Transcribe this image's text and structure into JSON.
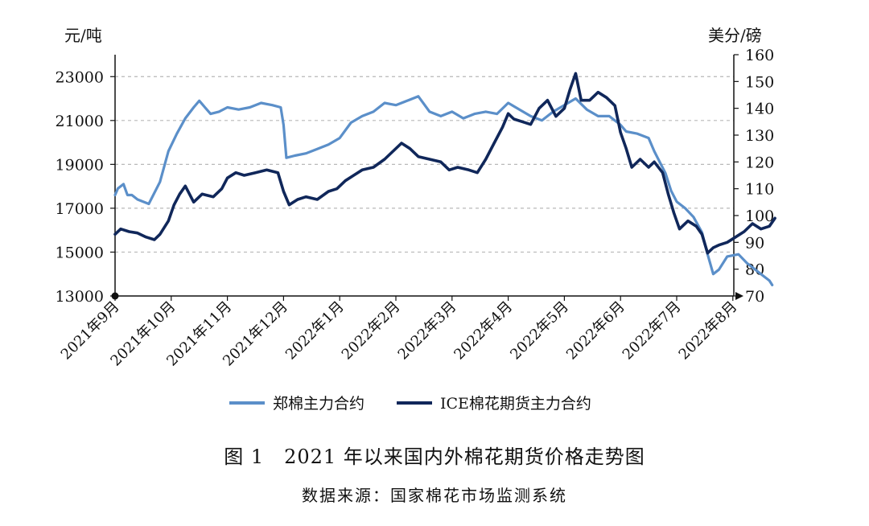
{
  "figure": {
    "caption": "图 1　2021 年以来国内外棉花期货价格走势图",
    "source": "数据来源：国家棉花市场监测系统"
  },
  "chart_data": {
    "type": "line",
    "left_unit": "元/吨",
    "right_unit": "美分/磅",
    "left_axis": {
      "min": 13000,
      "max": 24000,
      "ticks": [
        13000,
        15000,
        17000,
        19000,
        21000,
        23000
      ]
    },
    "right_axis": {
      "min": 70,
      "max": 160,
      "ticks": [
        70,
        80,
        90,
        100,
        110,
        120,
        130,
        140,
        150,
        160
      ]
    },
    "x_categories": [
      "2021年9月",
      "2021年10月",
      "2021年11月",
      "2021年12月",
      "2022年1月",
      "2022年2月",
      "2022年3月",
      "2022年4月",
      "2022年5月",
      "2022年6月",
      "2022年7月",
      "2022年8月"
    ],
    "grid": "horizontal dashed",
    "legend_position": "bottom",
    "series": [
      {
        "name": "郑棉主力合约",
        "axis": "left",
        "color": "#5b8fc9",
        "points": [
          [
            0.0,
            17600
          ],
          [
            0.05,
            17900
          ],
          [
            0.1,
            18000
          ],
          [
            0.15,
            18100
          ],
          [
            0.22,
            17600
          ],
          [
            0.3,
            17600
          ],
          [
            0.4,
            17400
          ],
          [
            0.6,
            17200
          ],
          [
            0.8,
            18200
          ],
          [
            0.95,
            19600
          ],
          [
            1.1,
            20400
          ],
          [
            1.25,
            21100
          ],
          [
            1.4,
            21600
          ],
          [
            1.5,
            21900
          ],
          [
            1.6,
            21600
          ],
          [
            1.7,
            21300
          ],
          [
            1.85,
            21400
          ],
          [
            2.0,
            21600
          ],
          [
            2.2,
            21500
          ],
          [
            2.4,
            21600
          ],
          [
            2.6,
            21800
          ],
          [
            2.8,
            21700
          ],
          [
            2.95,
            21600
          ],
          [
            3.0,
            20800
          ],
          [
            3.05,
            19300
          ],
          [
            3.2,
            19400
          ],
          [
            3.4,
            19500
          ],
          [
            3.6,
            19700
          ],
          [
            3.8,
            19900
          ],
          [
            4.0,
            20200
          ],
          [
            4.2,
            20900
          ],
          [
            4.4,
            21200
          ],
          [
            4.6,
            21400
          ],
          [
            4.8,
            21800
          ],
          [
            5.0,
            21700
          ],
          [
            5.2,
            21900
          ],
          [
            5.4,
            22100
          ],
          [
            5.6,
            21400
          ],
          [
            5.8,
            21200
          ],
          [
            6.0,
            21400
          ],
          [
            6.2,
            21100
          ],
          [
            6.4,
            21300
          ],
          [
            6.6,
            21400
          ],
          [
            6.8,
            21300
          ],
          [
            7.0,
            21800
          ],
          [
            7.2,
            21500
          ],
          [
            7.4,
            21200
          ],
          [
            7.6,
            21000
          ],
          [
            7.8,
            21400
          ],
          [
            8.0,
            21700
          ],
          [
            8.2,
            22000
          ],
          [
            8.4,
            21500
          ],
          [
            8.6,
            21200
          ],
          [
            8.8,
            21200
          ],
          [
            9.0,
            20800
          ],
          [
            9.1,
            20500
          ],
          [
            9.3,
            20400
          ],
          [
            9.5,
            20200
          ],
          [
            9.6,
            19600
          ],
          [
            9.8,
            18600
          ],
          [
            9.9,
            17800
          ],
          [
            10.0,
            17300
          ],
          [
            10.15,
            17000
          ],
          [
            10.3,
            16600
          ],
          [
            10.45,
            15900
          ],
          [
            10.55,
            14900
          ],
          [
            10.65,
            14000
          ],
          [
            10.75,
            14200
          ],
          [
            10.9,
            14800
          ],
          [
            11.1,
            14900
          ],
          [
            11.25,
            14500
          ],
          [
            11.4,
            14200
          ],
          [
            11.55,
            13900
          ],
          [
            11.65,
            13700
          ],
          [
            11.7,
            13500
          ]
        ]
      },
      {
        "name": "ICE棉花期货主力合约",
        "axis": "right",
        "color": "#10275a",
        "points": [
          [
            0.0,
            93
          ],
          [
            0.1,
            95
          ],
          [
            0.25,
            94
          ],
          [
            0.4,
            93.5
          ],
          [
            0.55,
            92
          ],
          [
            0.7,
            91
          ],
          [
            0.8,
            93
          ],
          [
            0.95,
            98
          ],
          [
            1.05,
            104
          ],
          [
            1.15,
            108
          ],
          [
            1.25,
            111
          ],
          [
            1.4,
            105
          ],
          [
            1.55,
            108
          ],
          [
            1.75,
            107
          ],
          [
            1.9,
            110
          ],
          [
            2.0,
            114
          ],
          [
            2.15,
            116
          ],
          [
            2.3,
            115
          ],
          [
            2.5,
            116
          ],
          [
            2.7,
            117
          ],
          [
            2.9,
            116
          ],
          [
            3.0,
            109
          ],
          [
            3.1,
            104
          ],
          [
            3.25,
            106
          ],
          [
            3.4,
            107
          ],
          [
            3.6,
            106
          ],
          [
            3.8,
            109
          ],
          [
            3.95,
            110
          ],
          [
            4.1,
            113
          ],
          [
            4.25,
            115
          ],
          [
            4.4,
            117
          ],
          [
            4.6,
            118
          ],
          [
            4.8,
            121
          ],
          [
            4.95,
            124
          ],
          [
            5.1,
            127
          ],
          [
            5.25,
            125
          ],
          [
            5.4,
            122
          ],
          [
            5.6,
            121
          ],
          [
            5.8,
            120
          ],
          [
            5.95,
            117
          ],
          [
            6.1,
            118
          ],
          [
            6.3,
            117
          ],
          [
            6.45,
            116
          ],
          [
            6.6,
            121
          ],
          [
            6.75,
            127
          ],
          [
            6.9,
            133
          ],
          [
            7.0,
            138
          ],
          [
            7.1,
            136
          ],
          [
            7.25,
            135
          ],
          [
            7.4,
            134
          ],
          [
            7.55,
            140
          ],
          [
            7.7,
            143
          ],
          [
            7.85,
            137
          ],
          [
            8.0,
            140
          ],
          [
            8.1,
            147
          ],
          [
            8.2,
            153
          ],
          [
            8.3,
            143
          ],
          [
            8.45,
            143
          ],
          [
            8.6,
            146
          ],
          [
            8.75,
            144
          ],
          [
            8.9,
            141
          ],
          [
            9.0,
            131
          ],
          [
            9.1,
            125
          ],
          [
            9.2,
            118
          ],
          [
            9.35,
            121
          ],
          [
            9.5,
            118
          ],
          [
            9.6,
            120
          ],
          [
            9.75,
            116
          ],
          [
            9.85,
            108
          ],
          [
            9.95,
            101
          ],
          [
            10.05,
            95
          ],
          [
            10.2,
            98
          ],
          [
            10.35,
            96
          ],
          [
            10.45,
            93
          ],
          [
            10.55,
            86
          ],
          [
            10.65,
            88
          ],
          [
            10.75,
            89
          ],
          [
            10.9,
            90
          ],
          [
            11.05,
            92
          ],
          [
            11.2,
            94
          ],
          [
            11.35,
            97
          ],
          [
            11.5,
            95
          ],
          [
            11.65,
            96
          ],
          [
            11.75,
            99
          ]
        ]
      }
    ]
  }
}
